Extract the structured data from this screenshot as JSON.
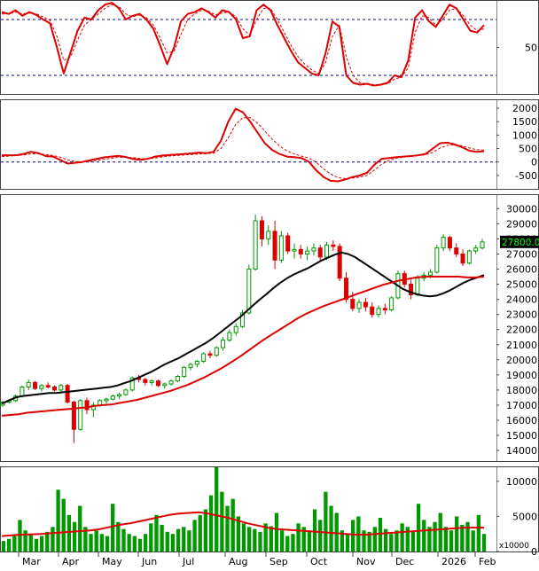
{
  "chart_data": [
    {
      "type": "line",
      "panel": "stochastic-oscillator",
      "ylim": [
        0,
        100
      ],
      "ticks": [
        {
          "value": 50,
          "label": "50"
        }
      ],
      "ref_lines": [
        80,
        20
      ],
      "series": [
        {
          "values": [
            88,
            86,
            90,
            84,
            88,
            85,
            80,
            76,
            50,
            22,
            45,
            68,
            82,
            80,
            90,
            96,
            98,
            92,
            80,
            84,
            86,
            80,
            70,
            52,
            32,
            50,
            78,
            86,
            88,
            92,
            88,
            82,
            90,
            88,
            80,
            60,
            62,
            90,
            96,
            90,
            74,
            60,
            46,
            34,
            28,
            22,
            20,
            44,
            78,
            72,
            20,
            12,
            10,
            11,
            9,
            10,
            12,
            20,
            18,
            36,
            82,
            90,
            78,
            72,
            84,
            96,
            92,
            80,
            68,
            66,
            74
          ],
          "color": "#dd0000"
        },
        {
          "values": [
            86,
            86,
            88,
            86,
            87,
            86,
            83,
            79,
            62,
            36,
            40,
            58,
            74,
            80,
            86,
            92,
            96,
            94,
            86,
            83,
            85,
            82,
            74,
            60,
            44,
            46,
            64,
            80,
            86,
            90,
            89,
            85,
            87,
            88,
            83,
            70,
            63,
            80,
            92,
            92,
            80,
            66,
            52,
            40,
            32,
            26,
            22,
            34,
            62,
            74,
            40,
            20,
            12,
            11,
            10,
            10,
            11,
            16,
            18,
            28,
            66,
            84,
            82,
            74,
            80,
            90,
            92,
            84,
            74,
            68,
            70
          ],
          "color": "#dd0000",
          "dashed": true
        }
      ]
    },
    {
      "type": "line",
      "panel": "macd",
      "ylim": [
        -1000,
        2300
      ],
      "ticks": [
        {
          "value": 2000,
          "label": "2000"
        },
        {
          "value": 1500,
          "label": "1500"
        },
        {
          "value": 1000,
          "label": "1000"
        },
        {
          "value": 500,
          "label": "500"
        },
        {
          "value": 0,
          "label": "0"
        },
        {
          "value": -500,
          "label": "-500"
        }
      ],
      "ref_lines": [
        0
      ],
      "series": [
        {
          "values": [
            250,
            250,
            250,
            300,
            380,
            330,
            220,
            200,
            80,
            -60,
            -30,
            0,
            60,
            120,
            170,
            200,
            230,
            180,
            110,
            80,
            120,
            200,
            240,
            260,
            280,
            300,
            320,
            350,
            330,
            380,
            800,
            1500,
            1980,
            1850,
            1500,
            1100,
            700,
            450,
            300,
            200,
            180,
            150,
            20,
            -300,
            -550,
            -700,
            -720,
            -650,
            -560,
            -500,
            -400,
            -100,
            120,
            150,
            180,
            200,
            220,
            250,
            300,
            500,
            700,
            720,
            650,
            550,
            420,
            380,
            400
          ],
          "color": "#dd0000"
        },
        {
          "values": [
            200,
            220,
            240,
            260,
            300,
            310,
            280,
            240,
            180,
            80,
            20,
            0,
            20,
            60,
            100,
            140,
            170,
            180,
            160,
            130,
            120,
            150,
            190,
            220,
            240,
            260,
            280,
            300,
            310,
            330,
            500,
            900,
            1400,
            1650,
            1650,
            1450,
            1150,
            850,
            600,
            420,
            300,
            220,
            150,
            0,
            -250,
            -450,
            -580,
            -620,
            -600,
            -560,
            -500,
            -300,
            -80,
            60,
            140,
            180,
            210,
            240,
            270,
            360,
            520,
            620,
            640,
            600,
            520,
            460,
            440
          ],
          "color": "#dd0000",
          "dashed": true
        }
      ]
    },
    {
      "type": "candlestick",
      "panel": "price",
      "ylim": [
        13300,
        30900
      ],
      "ticks": [
        {
          "value": 30000,
          "label": "30000"
        },
        {
          "value": 29000,
          "label": "29000"
        },
        {
          "value": 28000,
          "label": "28000"
        },
        {
          "value": 27000,
          "label": "27000"
        },
        {
          "value": 26000,
          "label": "26000"
        },
        {
          "value": 25000,
          "label": "25000"
        },
        {
          "value": 24000,
          "label": "24000"
        },
        {
          "value": 23000,
          "label": "23000"
        },
        {
          "value": 22000,
          "label": "22000"
        },
        {
          "value": 21000,
          "label": "21000"
        },
        {
          "value": 20000,
          "label": "20000"
        },
        {
          "value": 19000,
          "label": "19000"
        },
        {
          "value": 18000,
          "label": "18000"
        },
        {
          "value": 17000,
          "label": "17000"
        },
        {
          "value": 16000,
          "label": "16000"
        },
        {
          "value": 15000,
          "label": "15000"
        },
        {
          "value": 14000,
          "label": "14000"
        }
      ],
      "last_price_label": "27800.00",
      "ohlc": [
        [
          17000,
          17300,
          16900,
          17200
        ],
        [
          17200,
          17400,
          17100,
          17300
        ],
        [
          17300,
          17700,
          17200,
          17600
        ],
        [
          17600,
          18300,
          17500,
          18200
        ],
        [
          18200,
          18700,
          18000,
          18500
        ],
        [
          18500,
          18600,
          18000,
          18100
        ],
        [
          18100,
          18400,
          17900,
          18300
        ],
        [
          18300,
          18500,
          18100,
          18200
        ],
        [
          18200,
          18300,
          17900,
          18000
        ],
        [
          18000,
          18400,
          17900,
          18300
        ],
        [
          18300,
          18400,
          17100,
          17200
        ],
        [
          17200,
          17300,
          14500,
          15400
        ],
        [
          15400,
          17400,
          15300,
          17300
        ],
        [
          17300,
          17500,
          16400,
          16700
        ],
        [
          16700,
          17200,
          16200,
          17000
        ],
        [
          17000,
          17400,
          16900,
          17300
        ],
        [
          17300,
          17500,
          17100,
          17400
        ],
        [
          17400,
          17700,
          17300,
          17600
        ],
        [
          17600,
          17800,
          17400,
          17700
        ],
        [
          17700,
          18100,
          17600,
          18000
        ],
        [
          18000,
          18900,
          17900,
          18800
        ],
        [
          18800,
          19000,
          18500,
          18700
        ],
        [
          18700,
          18800,
          18300,
          18500
        ],
        [
          18500,
          18700,
          18300,
          18600
        ],
        [
          18600,
          18700,
          18200,
          18300
        ],
        [
          18300,
          18500,
          18100,
          18400
        ],
        [
          18400,
          18700,
          18300,
          18600
        ],
        [
          18600,
          19000,
          18500,
          18900
        ],
        [
          18900,
          19600,
          18800,
          19500
        ],
        [
          19500,
          19800,
          19300,
          19700
        ],
        [
          19700,
          20000,
          19500,
          19900
        ],
        [
          19900,
          20500,
          19800,
          20400
        ],
        [
          20400,
          20600,
          20100,
          20300
        ],
        [
          20300,
          20900,
          20200,
          20800
        ],
        [
          20800,
          21500,
          20600,
          21300
        ],
        [
          21300,
          22000,
          21200,
          21800
        ],
        [
          21800,
          22400,
          21600,
          22200
        ],
        [
          22200,
          23300,
          22100,
          23100
        ],
        [
          23100,
          26300,
          23000,
          26000
        ],
        [
          26000,
          29600,
          25900,
          29200
        ],
        [
          29200,
          29500,
          27500,
          28000
        ],
        [
          28000,
          28900,
          27600,
          28500
        ],
        [
          28500,
          29200,
          26000,
          26600
        ],
        [
          26600,
          28500,
          26400,
          28200
        ],
        [
          28200,
          28400,
          27000,
          27200
        ],
        [
          27200,
          27700,
          26700,
          27300
        ],
        [
          27300,
          27600,
          26700,
          27000
        ],
        [
          27000,
          27500,
          26600,
          27200
        ],
        [
          27200,
          27700,
          26900,
          27400
        ],
        [
          27400,
          27600,
          26500,
          26800
        ],
        [
          26800,
          27800,
          26600,
          27600
        ],
        [
          27600,
          27900,
          27200,
          27500
        ],
        [
          27500,
          27700,
          25200,
          25400
        ],
        [
          25400,
          25800,
          23800,
          24000
        ],
        [
          24000,
          24500,
          23200,
          23400
        ],
        [
          23400,
          24000,
          23100,
          23800
        ],
        [
          23800,
          24100,
          23200,
          23500
        ],
        [
          23500,
          23800,
          22800,
          23000
        ],
        [
          23000,
          23600,
          22800,
          23400
        ],
        [
          23400,
          23700,
          23000,
          23300
        ],
        [
          23300,
          24200,
          23200,
          24100
        ],
        [
          24100,
          25900,
          24000,
          25700
        ],
        [
          25700,
          25900,
          24800,
          25000
        ],
        [
          25000,
          25300,
          24000,
          24300
        ],
        [
          24300,
          25600,
          24200,
          25400
        ],
        [
          25400,
          25800,
          25200,
          25600
        ],
        [
          25600,
          26000,
          25400,
          25800
        ],
        [
          25800,
          27600,
          25700,
          27400
        ],
        [
          27400,
          28300,
          27200,
          28100
        ],
        [
          28100,
          28200,
          27200,
          27400
        ],
        [
          27400,
          27700,
          26800,
          27000
        ],
        [
          27000,
          27300,
          26200,
          26400
        ],
        [
          26400,
          27300,
          26300,
          27200
        ],
        [
          27200,
          27600,
          27000,
          27400
        ],
        [
          27400,
          28000,
          27300,
          27800
        ]
      ],
      "series": [
        {
          "values": [
            17100,
            17300,
            17500,
            17600,
            17650,
            17700,
            17750,
            17800,
            17800,
            17850,
            17900,
            17950,
            18000,
            18050,
            18100,
            18150,
            18200,
            18300,
            18450,
            18600,
            18800,
            19000,
            19200,
            19450,
            19700,
            19900,
            20100,
            20350,
            20600,
            20850,
            21100,
            21400,
            21750,
            22100,
            22450,
            22800,
            23200,
            23600,
            24000,
            24350,
            24750,
            25100,
            25400,
            25650,
            25850,
            26050,
            26300,
            26550,
            26750,
            26950,
            27100,
            27000,
            26800,
            26500,
            26200,
            25900,
            25600,
            25300,
            25000,
            24700,
            24500,
            24350,
            24250,
            24200,
            24250,
            24400,
            24600,
            24850,
            25100,
            25300,
            25450,
            25600
          ],
          "color": "#000000"
        },
        {
          "values": [
            16300,
            16350,
            16400,
            16500,
            16550,
            16600,
            16650,
            16700,
            16750,
            16800,
            16850,
            16950,
            17000,
            17050,
            17150,
            17250,
            17350,
            17500,
            17650,
            17800,
            17950,
            18150,
            18350,
            18600,
            18850,
            19150,
            19450,
            19800,
            20150,
            20550,
            20950,
            21350,
            21700,
            22050,
            22400,
            22750,
            23050,
            23300,
            23550,
            23750,
            23950,
            24150,
            24350,
            24550,
            24750,
            24950,
            25100,
            25250,
            25350,
            25450,
            25500,
            25500,
            25500,
            25500,
            25500,
            25450,
            25450,
            25500
          ],
          "color": "#dd0000"
        }
      ]
    },
    {
      "type": "bar",
      "panel": "volume",
      "ylim": [
        0,
        12000
      ],
      "ticks": [
        {
          "value": 10000,
          "label": "10000"
        },
        {
          "value": 5000,
          "label": "5000"
        },
        {
          "value": 0,
          "label": "0"
        }
      ],
      "unit_label": "x10000",
      "values": [
        1500,
        1800,
        2200,
        4500,
        3000,
        2500,
        1800,
        2200,
        2800,
        3500,
        8800,
        7500,
        5200,
        4200,
        6500,
        3500,
        2500,
        3000,
        2500,
        2200,
        6800,
        4200,
        3200,
        2500,
        2200,
        1800,
        2500,
        4000,
        5200,
        3800,
        2800,
        2500,
        3200,
        3500,
        3000,
        4500,
        5200,
        6000,
        8000,
        12000,
        8500,
        6500,
        7500,
        5000,
        4000,
        3500,
        3200,
        2800,
        4000,
        3600,
        5500,
        3000,
        2200,
        2500,
        4000,
        3500,
        3000,
        6000,
        4500,
        8500,
        6500,
        5500,
        3000,
        2500,
        4500,
        5000,
        3000,
        2800,
        3500,
        4800,
        3200,
        2500,
        3000,
        4000,
        3500,
        2800,
        6800,
        4500,
        3500,
        4200,
        5500,
        3500,
        3000,
        5000,
        3800,
        4200,
        3000,
        5200,
        2500
      ],
      "series": [
        {
          "values": [
            2200,
            2300,
            2400,
            2450,
            2500,
            2600,
            2700,
            2800,
            2900,
            3000,
            3200,
            3500,
            3800,
            4000,
            4300,
            4600,
            4900,
            5200,
            5400,
            5500,
            5600,
            5400,
            5100,
            4800,
            4400,
            4000,
            3700,
            3400,
            3200,
            3100,
            3000,
            2900,
            2800,
            2700,
            2600,
            2500,
            2400,
            2400,
            2500,
            2600,
            2700,
            2800,
            2900,
            3000,
            3100,
            3200,
            3300,
            3400,
            3400,
            3400
          ],
          "color": "#dd0000"
        }
      ],
      "x_tick_labels": [
        "Mar",
        "Apr",
        "May",
        "Jun",
        "Jul",
        "Aug",
        "Sep",
        "Oct",
        "Nov",
        "Dec",
        "2026",
        "Feb"
      ]
    }
  ]
}
